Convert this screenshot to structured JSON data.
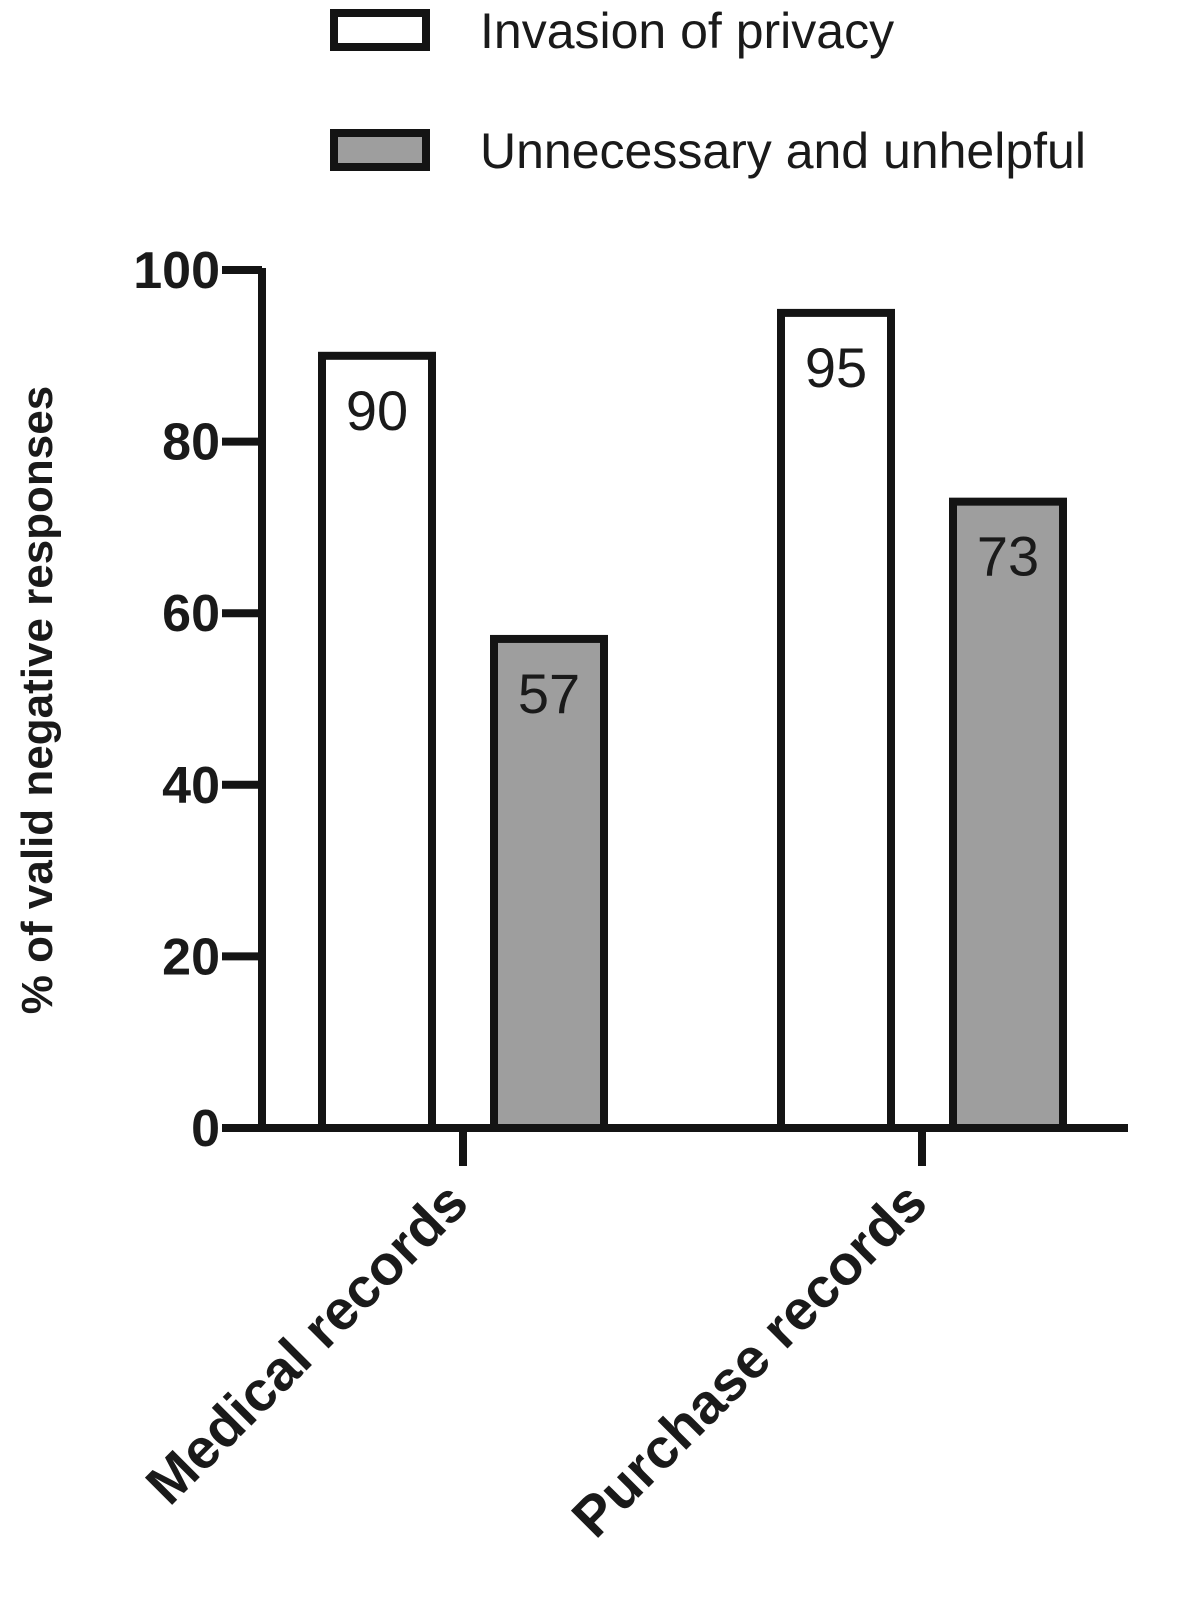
{
  "chart_data": {
    "type": "bar",
    "categories": [
      "Medical records",
      "Purchase records"
    ],
    "series": [
      {
        "name": "Invasion of privacy",
        "values": [
          90,
          95
        ],
        "color": "#ffffff"
      },
      {
        "name": "Unnecessary and unhelpful",
        "values": [
          57,
          73
        ],
        "color": "#9e9e9e"
      }
    ],
    "data_labels": [
      [
        "90",
        "95"
      ],
      [
        "57",
        "73"
      ]
    ],
    "ylabel": "% of valid negative responses",
    "xlabel": "",
    "title": "",
    "ylim": [
      0,
      100
    ],
    "yticks": [
      0,
      20,
      40,
      60,
      80,
      100
    ],
    "ytick_labels": [
      "0",
      "20",
      "40",
      "60",
      "80",
      "100"
    ],
    "legend_position": "top-right",
    "grid": false
  }
}
